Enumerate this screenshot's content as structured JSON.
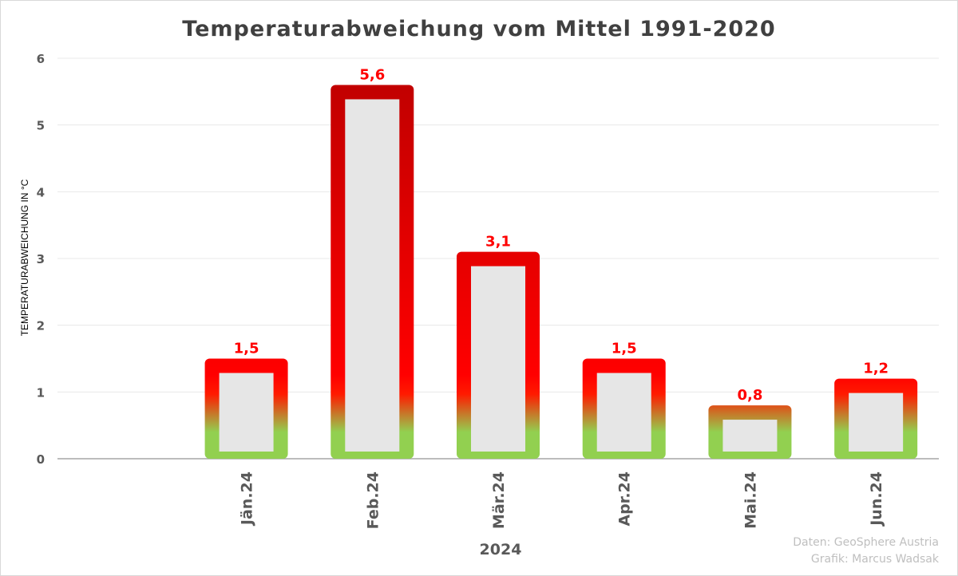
{
  "chart_data": {
    "type": "bar",
    "title": "Temperaturabweichung vom Mittel 1991-2020",
    "xlabel": "2024",
    "ylabel": "TEMPERATURABWEICHUNG IN °C",
    "categories": [
      "",
      "Jän.24",
      "Feb.24",
      "Mär.24",
      "Apr.24",
      "Mai.24",
      "Jun.24"
    ],
    "values": [
      null,
      1.5,
      5.6,
      3.1,
      1.5,
      0.8,
      1.2
    ],
    "data_labels": [
      "",
      "1,5",
      "5,6",
      "3,1",
      "1,5",
      "0,8",
      "1,2"
    ],
    "yticks": [
      "0",
      "1",
      "2",
      "3",
      "4",
      "5",
      "6"
    ],
    "ylim": [
      0,
      6
    ],
    "grid": true,
    "colors": {
      "bar_fill": "#e6e6e6",
      "gradient_top": "#c00000",
      "gradient_mid": "#ff0000",
      "gradient_bottom": "#92d050",
      "label": "#ff0000",
      "axis_text": "#595959",
      "grid": "#e8e8e8"
    }
  },
  "credits": {
    "data": "Daten: GeoSphere Austria",
    "author": "Grafik: Marcus Wadsak"
  }
}
